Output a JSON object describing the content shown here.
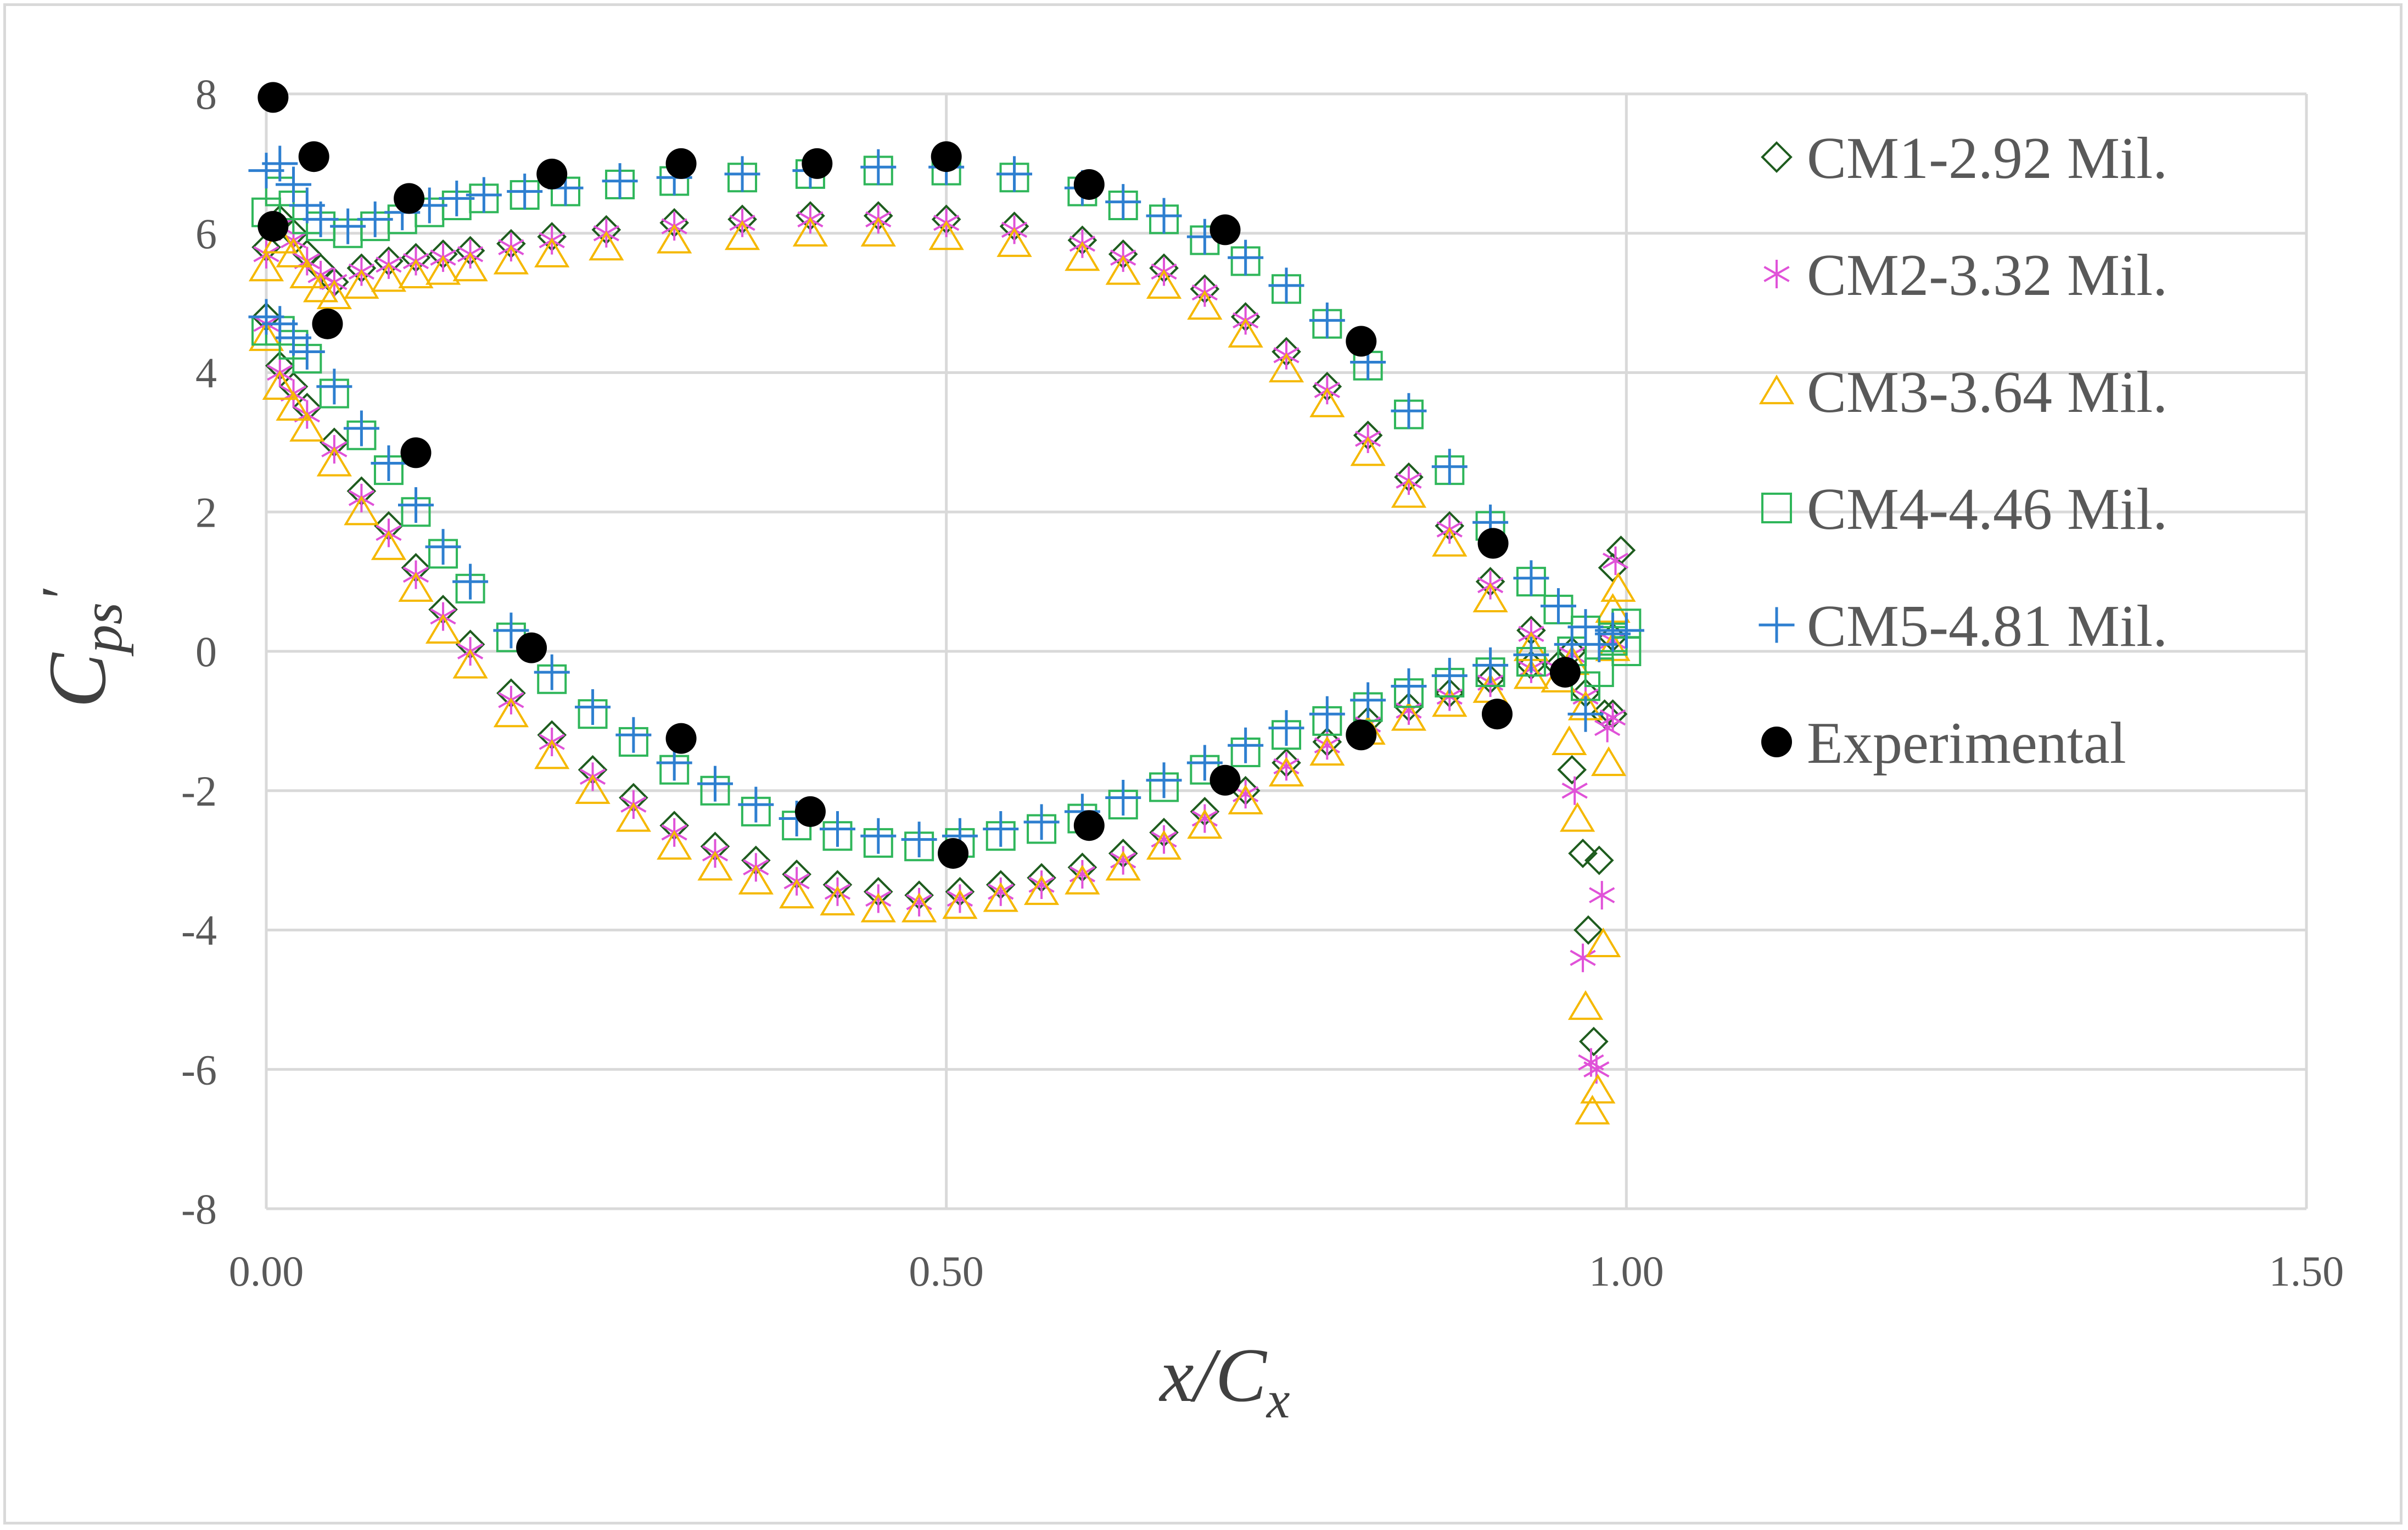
{
  "chart_data": {
    "type": "scatter",
    "title": "",
    "xlabel": {
      "main": "x/C",
      "sub": "x"
    },
    "ylabel": {
      "main": "C",
      "sub": "ps",
      "prime": "′"
    },
    "xlim": [
      0,
      1.5
    ],
    "ylim": [
      -8,
      8
    ],
    "x_ticks": [
      0,
      0.5,
      1.0,
      1.5
    ],
    "x_tick_labels": [
      "0.00",
      "0.50",
      "1.00",
      "1.50"
    ],
    "y_ticks": [
      -8,
      -6,
      -4,
      -2,
      0,
      2,
      4,
      6,
      8
    ],
    "y_tick_labels": [
      "-8",
      "-6",
      "-4",
      "-2",
      "0",
      "2",
      "4",
      "6",
      "8"
    ],
    "grid": true,
    "legend_position": "right",
    "series": [
      {
        "name": "CM1-2.92 Mil.",
        "marker": "diamond",
        "color": "#1e5c1e",
        "upper": {
          "x": [
            0,
            0.01,
            0.02,
            0.03,
            0.04,
            0.05,
            0.07,
            0.09,
            0.11,
            0.13,
            0.15,
            0.18,
            0.21,
            0.25,
            0.3,
            0.35,
            0.4,
            0.45,
            0.5,
            0.55,
            0.6,
            0.63,
            0.66,
            0.69,
            0.72,
            0.75,
            0.78,
            0.81,
            0.84,
            0.87,
            0.9,
            0.93,
            0.95,
            0.97,
            0.99
          ],
          "y": [
            5.8,
            6.2,
            6.0,
            5.7,
            5.5,
            5.3,
            5.5,
            5.6,
            5.65,
            5.7,
            5.75,
            5.85,
            5.95,
            6.05,
            6.15,
            6.2,
            6.25,
            6.25,
            6.2,
            6.1,
            5.9,
            5.7,
            5.5,
            5.2,
            4.8,
            4.3,
            3.8,
            3.1,
            2.5,
            1.8,
            1.0,
            0.3,
            -0.2,
            -0.6,
            -0.9
          ]
        },
        "lower": {
          "x": [
            0,
            0.01,
            0.02,
            0.03,
            0.05,
            0.07,
            0.09,
            0.11,
            0.13,
            0.15,
            0.18,
            0.21,
            0.24,
            0.27,
            0.3,
            0.33,
            0.36,
            0.39,
            0.42,
            0.45,
            0.48,
            0.51,
            0.54,
            0.57,
            0.6,
            0.63,
            0.66,
            0.69,
            0.72,
            0.75,
            0.78,
            0.81,
            0.84,
            0.87,
            0.9,
            0.93,
            0.96,
            0.99
          ],
          "y": [
            4.8,
            4.1,
            3.8,
            3.5,
            3.0,
            2.3,
            1.8,
            1.2,
            0.6,
            0.1,
            -0.6,
            -1.2,
            -1.7,
            -2.1,
            -2.5,
            -2.8,
            -3.0,
            -3.2,
            -3.35,
            -3.45,
            -3.5,
            -3.45,
            -3.35,
            -3.25,
            -3.1,
            -2.9,
            -2.6,
            -2.3,
            -2.0,
            -1.6,
            -1.3,
            -1.0,
            -0.8,
            -0.6,
            -0.4,
            -0.2,
            0.0,
            0.2
          ]
        },
        "te": {
          "x": [
            0.96,
            0.968,
            0.972,
            0.976,
            0.98,
            0.984,
            0.99,
            0.996
          ],
          "y": [
            -1.7,
            -2.9,
            -4.0,
            -5.6,
            -3.0,
            -0.9,
            1.2,
            1.45
          ]
        }
      },
      {
        "name": "CM2-3.32 Mil.",
        "marker": "asterisk",
        "color": "#e052d8",
        "upper": {
          "x": [
            0,
            0.01,
            0.02,
            0.03,
            0.04,
            0.05,
            0.07,
            0.09,
            0.11,
            0.13,
            0.15,
            0.18,
            0.21,
            0.25,
            0.3,
            0.35,
            0.4,
            0.45,
            0.5,
            0.55,
            0.6,
            0.63,
            0.66,
            0.69,
            0.72,
            0.75,
            0.78,
            0.81,
            0.84,
            0.87,
            0.9,
            0.93,
            0.95,
            0.97,
            0.99
          ],
          "y": [
            5.7,
            6.1,
            5.9,
            5.6,
            5.4,
            5.3,
            5.45,
            5.55,
            5.6,
            5.65,
            5.7,
            5.8,
            5.9,
            6.0,
            6.1,
            6.15,
            6.2,
            6.2,
            6.15,
            6.05,
            5.85,
            5.65,
            5.45,
            5.15,
            4.75,
            4.25,
            3.75,
            3.05,
            2.45,
            1.75,
            0.95,
            0.25,
            -0.25,
            -0.65,
            -0.95
          ]
        },
        "lower": {
          "x": [
            0,
            0.01,
            0.02,
            0.03,
            0.05,
            0.07,
            0.09,
            0.11,
            0.13,
            0.15,
            0.18,
            0.21,
            0.24,
            0.27,
            0.3,
            0.33,
            0.36,
            0.39,
            0.42,
            0.45,
            0.48,
            0.51,
            0.54,
            0.57,
            0.6,
            0.63,
            0.66,
            0.69,
            0.72,
            0.75,
            0.78,
            0.81,
            0.84,
            0.87,
            0.9,
            0.93,
            0.96,
            0.99
          ],
          "y": [
            4.7,
            4.0,
            3.7,
            3.4,
            2.9,
            2.2,
            1.7,
            1.1,
            0.5,
            0.0,
            -0.7,
            -1.3,
            -1.8,
            -2.2,
            -2.6,
            -2.9,
            -3.1,
            -3.3,
            -3.45,
            -3.55,
            -3.6,
            -3.55,
            -3.45,
            -3.35,
            -3.2,
            -3.0,
            -2.7,
            -2.4,
            -2.05,
            -1.65,
            -1.35,
            -1.05,
            -0.85,
            -0.65,
            -0.45,
            -0.25,
            -0.05,
            0.15
          ]
        },
        "te": {
          "x": [
            0.962,
            0.968,
            0.974,
            0.978,
            0.982,
            0.986,
            0.992
          ],
          "y": [
            -2.0,
            -4.4,
            -5.9,
            -6.0,
            -3.5,
            -1.1,
            1.3
          ]
        }
      },
      {
        "name": "CM3-3.64 Mil.",
        "marker": "triangle",
        "color": "#f5b800",
        "upper": {
          "x": [
            0,
            0.01,
            0.02,
            0.03,
            0.04,
            0.05,
            0.07,
            0.09,
            0.11,
            0.13,
            0.15,
            0.18,
            0.21,
            0.25,
            0.3,
            0.35,
            0.4,
            0.45,
            0.5,
            0.55,
            0.6,
            0.63,
            0.66,
            0.69,
            0.72,
            0.75,
            0.78,
            0.81,
            0.84,
            0.87,
            0.9,
            0.93,
            0.95,
            0.97,
            0.99
          ],
          "y": [
            5.5,
            5.9,
            5.7,
            5.4,
            5.2,
            5.1,
            5.25,
            5.35,
            5.4,
            5.45,
            5.5,
            5.6,
            5.7,
            5.8,
            5.9,
            5.95,
            6.0,
            6.0,
            5.95,
            5.85,
            5.65,
            5.45,
            5.25,
            4.95,
            4.55,
            4.05,
            3.55,
            2.85,
            2.25,
            1.55,
            0.75,
            0.05,
            -0.4,
            -0.8,
            0.6
          ]
        },
        "lower": {
          "x": [
            0,
            0.01,
            0.02,
            0.03,
            0.05,
            0.07,
            0.09,
            0.11,
            0.13,
            0.15,
            0.18,
            0.21,
            0.24,
            0.27,
            0.3,
            0.33,
            0.36,
            0.39,
            0.42,
            0.45,
            0.48,
            0.51,
            0.54,
            0.57,
            0.6,
            0.63,
            0.66,
            0.69,
            0.72,
            0.75,
            0.78,
            0.81,
            0.84,
            0.87,
            0.9,
            0.93,
            0.96,
            0.99
          ],
          "y": [
            4.5,
            3.8,
            3.5,
            3.2,
            2.7,
            2.0,
            1.5,
            0.9,
            0.3,
            -0.2,
            -0.9,
            -1.5,
            -2.0,
            -2.4,
            -2.8,
            -3.1,
            -3.3,
            -3.5,
            -3.6,
            -3.7,
            -3.7,
            -3.65,
            -3.55,
            -3.45,
            -3.3,
            -3.1,
            -2.8,
            -2.5,
            -2.15,
            -1.75,
            -1.45,
            -1.15,
            -0.95,
            -0.75,
            -0.55,
            -0.35,
            -0.15,
            0.05
          ]
        },
        "te": {
          "x": [
            0.958,
            0.964,
            0.97,
            0.975,
            0.979,
            0.983,
            0.987,
            0.994
          ],
          "y": [
            -1.3,
            -2.4,
            -5.1,
            -6.6,
            -6.3,
            -4.2,
            -1.6,
            0.9
          ]
        }
      },
      {
        "name": "CM4-4.46 Mil.",
        "marker": "square",
        "color": "#2fb65a",
        "upper": {
          "x": [
            0,
            0.01,
            0.02,
            0.03,
            0.04,
            0.06,
            0.08,
            0.1,
            0.12,
            0.14,
            0.16,
            0.19,
            0.22,
            0.26,
            0.3,
            0.35,
            0.4,
            0.45,
            0.5,
            0.55,
            0.6,
            0.63,
            0.66,
            0.69,
            0.72,
            0.75,
            0.78,
            0.81,
            0.84,
            0.87,
            0.9,
            0.93,
            0.95,
            0.97,
            1.0
          ],
          "y": [
            6.3,
            6.6,
            6.4,
            6.2,
            6.1,
            6.0,
            6.1,
            6.2,
            6.3,
            6.4,
            6.5,
            6.55,
            6.6,
            6.7,
            6.75,
            6.8,
            6.85,
            6.9,
            6.9,
            6.8,
            6.6,
            6.4,
            6.2,
            5.9,
            5.6,
            5.2,
            4.7,
            4.1,
            3.4,
            2.6,
            1.8,
            1.0,
            0.6,
            0.3,
            0.0
          ]
        },
        "lower": {
          "x": [
            0,
            0.01,
            0.02,
            0.03,
            0.05,
            0.07,
            0.09,
            0.11,
            0.13,
            0.15,
            0.18,
            0.21,
            0.24,
            0.27,
            0.3,
            0.33,
            0.36,
            0.39,
            0.42,
            0.45,
            0.48,
            0.51,
            0.54,
            0.57,
            0.6,
            0.63,
            0.66,
            0.69,
            0.72,
            0.75,
            0.78,
            0.81,
            0.84,
            0.87,
            0.9,
            0.93,
            0.96,
            0.99
          ],
          "y": [
            4.6,
            4.6,
            4.4,
            4.2,
            3.7,
            3.1,
            2.6,
            2.0,
            1.4,
            0.9,
            0.2,
            -0.4,
            -0.9,
            -1.3,
            -1.7,
            -2.0,
            -2.3,
            -2.5,
            -2.65,
            -2.75,
            -2.8,
            -2.75,
            -2.65,
            -2.55,
            -2.4,
            -2.2,
            -1.95,
            -1.7,
            -1.45,
            -1.2,
            -1.0,
            -0.8,
            -0.6,
            -0.45,
            -0.3,
            -0.15,
            0.0,
            0.15
          ]
        },
        "te": {
          "x": [
            0.97,
            0.98,
            0.99,
            1.0
          ],
          "y": [
            -0.5,
            -0.3,
            0.2,
            0.4
          ]
        }
      },
      {
        "name": "CM5-4.81 Mil.",
        "marker": "plus",
        "color": "#2e7fd0",
        "upper": {
          "x": [
            0,
            0.01,
            0.02,
            0.03,
            0.04,
            0.06,
            0.08,
            0.1,
            0.12,
            0.14,
            0.16,
            0.19,
            0.22,
            0.26,
            0.3,
            0.35,
            0.4,
            0.45,
            0.5,
            0.55,
            0.6,
            0.63,
            0.66,
            0.69,
            0.72,
            0.75,
            0.78,
            0.81,
            0.84,
            0.87,
            0.9,
            0.93,
            0.95,
            0.97,
            1.0
          ],
          "y": [
            6.9,
            7.0,
            6.7,
            6.4,
            6.2,
            6.1,
            6.2,
            6.3,
            6.4,
            6.5,
            6.55,
            6.6,
            6.65,
            6.75,
            6.8,
            6.85,
            6.9,
            6.95,
            6.95,
            6.85,
            6.65,
            6.45,
            6.25,
            5.95,
            5.65,
            5.25,
            4.75,
            4.15,
            3.45,
            2.65,
            1.85,
            1.05,
            0.65,
            0.35,
            0.3
          ]
        },
        "lower": {
          "x": [
            0,
            0.01,
            0.02,
            0.03,
            0.05,
            0.07,
            0.09,
            0.11,
            0.13,
            0.15,
            0.18,
            0.21,
            0.24,
            0.27,
            0.3,
            0.33,
            0.36,
            0.39,
            0.42,
            0.45,
            0.48,
            0.51,
            0.54,
            0.57,
            0.6,
            0.63,
            0.66,
            0.69,
            0.72,
            0.75,
            0.78,
            0.81,
            0.84,
            0.87,
            0.9,
            0.93,
            0.96,
            0.99
          ],
          "y": [
            4.8,
            4.7,
            4.5,
            4.3,
            3.8,
            3.2,
            2.7,
            2.1,
            1.5,
            1.0,
            0.3,
            -0.3,
            -0.8,
            -1.2,
            -1.6,
            -1.9,
            -2.2,
            -2.4,
            -2.55,
            -2.65,
            -2.7,
            -2.65,
            -2.55,
            -2.45,
            -2.3,
            -2.1,
            -1.85,
            -1.6,
            -1.35,
            -1.1,
            -0.9,
            -0.7,
            -0.5,
            -0.35,
            -0.2,
            -0.05,
            0.1,
            0.25
          ]
        },
        "te": {
          "x": [
            0.97,
            0.98,
            0.99,
            1.0
          ],
          "y": [
            -0.9,
            0.1,
            0.3,
            0.3
          ]
        }
      },
      {
        "name": "Experimental",
        "marker": "circle",
        "color": "#000000",
        "x": [
          0.005,
          0.005,
          0.035,
          0.045,
          0.105,
          0.11,
          0.195,
          0.21,
          0.305,
          0.305,
          0.405,
          0.4,
          0.5,
          0.505,
          0.605,
          0.605,
          0.705,
          0.705,
          0.805,
          0.805,
          0.902,
          0.905,
          0.955
        ],
        "y": [
          7.95,
          6.1,
          7.1,
          4.7,
          6.5,
          2.85,
          0.05,
          6.85,
          7.0,
          -1.25,
          7.0,
          -2.3,
          7.1,
          -2.9,
          6.7,
          -2.5,
          6.05,
          -1.85,
          4.45,
          -1.2,
          1.55,
          -0.9,
          -0.3
        ]
      }
    ]
  }
}
